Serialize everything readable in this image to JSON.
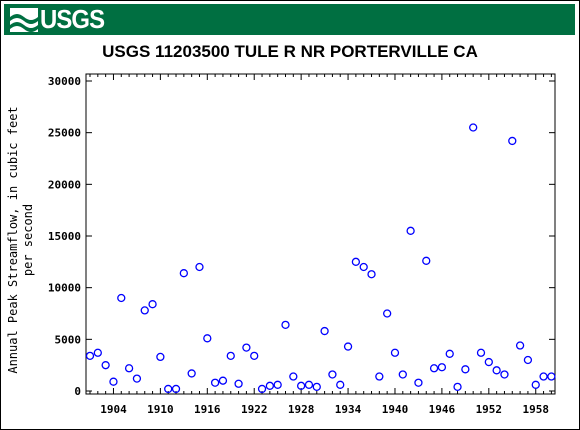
{
  "header": {
    "logo_text": "USGS",
    "logo_icon": "usgs-wave-icon",
    "banner_color": "#006f41"
  },
  "chart_data": {
    "type": "scatter",
    "title": "USGS 11203500 TULE R NR PORTERVILLE CA",
    "xlabel": "",
    "ylabel_lines": [
      "Annual Peak Streamflow, in cubic feet",
      "per second"
    ],
    "xlim": [
      1901,
      1961
    ],
    "ylim": [
      0,
      30000
    ],
    "x_ticks": [
      1904,
      1910,
      1916,
      1922,
      1928,
      1934,
      1940,
      1946,
      1952,
      1958
    ],
    "x_tick_labels": [
      "1904",
      "1910",
      "1916",
      "1922",
      "1928",
      "1934",
      "1940",
      "1946",
      "1952",
      "1958"
    ],
    "y_ticks": [
      0,
      5000,
      10000,
      15000,
      20000,
      25000,
      30000
    ],
    "y_tick_labels": [
      "0",
      "5000",
      "10000",
      "15000",
      "20000",
      "25000",
      "30000"
    ],
    "grid": false,
    "marker": "open-circle",
    "marker_color": "#0000ff",
    "series": [
      {
        "x": [
          1901,
          1902,
          1903,
          1904,
          1905,
          1906,
          1907,
          1908,
          1909,
          1910,
          1911,
          1912,
          1913,
          1914,
          1915,
          1916,
          1917,
          1918,
          1919,
          1920,
          1921,
          1922,
          1923,
          1924,
          1925,
          1926,
          1927,
          1928,
          1929,
          1930,
          1931,
          1932,
          1933,
          1934,
          1935,
          1936,
          1937,
          1938,
          1939,
          1940,
          1941,
          1942,
          1943,
          1944,
          1945,
          1946,
          1947,
          1948,
          1949,
          1950,
          1951,
          1952,
          1953,
          1954,
          1955,
          1956,
          1957,
          1958,
          1959,
          1960
        ],
        "y": [
          3400,
          3700,
          2500,
          900,
          9000,
          2200,
          1200,
          7800,
          8400,
          3300,
          200,
          200,
          11400,
          1700,
          12000,
          5100,
          800,
          1000,
          3400,
          700,
          4200,
          3400,
          200,
          500,
          600,
          6400,
          1400,
          500,
          600,
          400,
          5800,
          1600,
          600,
          4300,
          12500,
          12000,
          11300,
          1400,
          7500,
          3700,
          1600,
          15500,
          800,
          12600,
          2200,
          2300,
          3600,
          400,
          2100,
          25500,
          3700,
          2800,
          2000,
          1600,
          24200,
          4400,
          3000,
          600,
          1400,
          1400
        ]
      }
    ]
  }
}
